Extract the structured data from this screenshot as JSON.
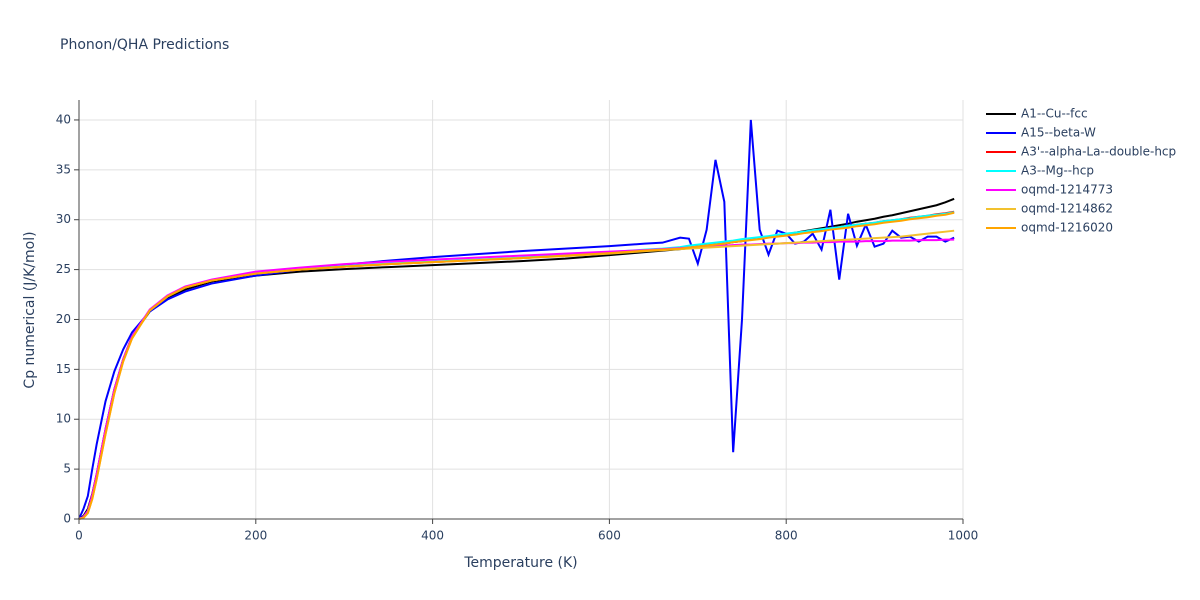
{
  "chart_data": {
    "type": "line",
    "title": "Phonon/QHA Predictions",
    "x_label": "Temperature (K)",
    "y_label": "Cp numerical (J/K/mol)",
    "xlim": [
      0,
      1000
    ],
    "xticks": [
      0,
      200,
      400,
      600,
      800,
      1000
    ],
    "ylim": [
      0,
      42
    ],
    "yticks": [
      0,
      5,
      10,
      15,
      20,
      25,
      30,
      35,
      40
    ],
    "grid": true,
    "legend": "right",
    "x": [
      0,
      5,
      10,
      15,
      20,
      30,
      40,
      50,
      60,
      80,
      100,
      120,
      150,
      200,
      250,
      300,
      350,
      400,
      450,
      500,
      550,
      600,
      640,
      660,
      680,
      690,
      700,
      710,
      720,
      730,
      740,
      750,
      760,
      770,
      780,
      790,
      800,
      810,
      820,
      830,
      840,
      850,
      860,
      870,
      880,
      890,
      900,
      910,
      920,
      930,
      940,
      950,
      960,
      970,
      980,
      990
    ],
    "series": [
      {
        "name": "A1--Cu--fcc",
        "color": "#000000",
        "values": [
          0,
          0.3,
          1,
          2.5,
          4.5,
          9,
          13,
          16,
          18.3,
          20.8,
          22.2,
          23,
          23.8,
          24.4,
          24.8,
          25.05,
          25.25,
          25.45,
          25.65,
          25.85,
          26.1,
          26.45,
          26.75,
          26.9,
          27.05,
          27.15,
          27.3,
          27.4,
          27.5,
          27.6,
          27.75,
          27.85,
          28.0,
          28.1,
          28.25,
          28.4,
          28.55,
          28.7,
          28.85,
          29.0,
          29.15,
          29.3,
          29.45,
          29.6,
          29.8,
          29.95,
          30.1,
          30.3,
          30.45,
          30.65,
          30.85,
          31.05,
          31.25,
          31.45,
          31.75,
          32.1
        ]
      },
      {
        "name": "A15--beta-W",
        "color": "#0000ff",
        "values": [
          0,
          1,
          2.3,
          5,
          7.5,
          11.8,
          14.8,
          17,
          18.7,
          20.8,
          22,
          22.8,
          23.6,
          24.4,
          25,
          25.5,
          25.9,
          26.25,
          26.55,
          26.85,
          27.1,
          27.35,
          27.6,
          27.7,
          28.2,
          28.1,
          25.6,
          29,
          36,
          31.8,
          6.7,
          20,
          40,
          29,
          26.5,
          28.9,
          28.6,
          27.6,
          27.8,
          28.6,
          27,
          31,
          24,
          30.6,
          27.4,
          29.5,
          27.3,
          27.6,
          28.9,
          28.2,
          28.3,
          27.8,
          28.3,
          28.3,
          27.8,
          28.2
        ]
      },
      {
        "name": "A3'--alpha-La--double-hcp",
        "color": "#ff0000",
        "values": [
          0,
          0.2,
          0.8,
          2.3,
          4.3,
          8.8,
          12.8,
          15.9,
          18.2,
          20.9,
          22.3,
          23.2,
          23.9,
          24.6,
          25,
          25.3,
          25.55,
          25.75,
          25.95,
          26.15,
          26.4,
          26.7,
          26.95,
          27.05,
          27.2,
          27.3,
          27.4,
          27.5,
          27.65,
          27.75,
          27.85,
          28.0,
          28.1,
          28.2,
          28.3,
          28.45,
          28.55,
          28.65,
          28.8,
          28.9,
          29.0,
          29.15,
          29.25,
          29.35,
          29.5,
          29.6,
          29.7,
          29.85,
          29.95,
          30.05,
          30.2,
          30.3,
          30.4,
          30.55,
          30.65,
          30.8
        ]
      },
      {
        "name": "A3--Mg--hcp",
        "color": "#00ffff",
        "values": [
          0,
          0.2,
          0.8,
          2.3,
          4.3,
          8.8,
          12.8,
          15.9,
          18.2,
          20.9,
          22.3,
          23.2,
          23.95,
          24.65,
          25.05,
          25.35,
          25.6,
          25.8,
          26.0,
          26.2,
          26.45,
          26.75,
          27.0,
          27.1,
          27.25,
          27.4,
          27.5,
          27.6,
          27.7,
          27.8,
          27.9,
          28.05,
          28.15,
          28.25,
          28.35,
          28.5,
          28.6,
          28.7,
          28.8,
          28.95,
          29.05,
          29.15,
          29.25,
          29.4,
          29.5,
          29.6,
          29.7,
          29.85,
          29.95,
          30.05,
          30.15,
          30.3,
          30.4,
          30.5,
          30.6,
          30.75
        ]
      },
      {
        "name": "oqmd-1214773",
        "color": "#ff00ff",
        "values": [
          0,
          0.2,
          0.8,
          2.4,
          4.5,
          9,
          13,
          16,
          18.3,
          21,
          22.4,
          23.3,
          24,
          24.8,
          25.2,
          25.55,
          25.8,
          26.0,
          26.2,
          26.4,
          26.6,
          26.8,
          26.95,
          27.05,
          27.15,
          27.2,
          27.25,
          27.3,
          27.35,
          27.4,
          27.45,
          27.5,
          27.5,
          27.55,
          27.6,
          27.6,
          27.65,
          27.65,
          27.7,
          27.7,
          27.75,
          27.75,
          27.8,
          27.8,
          27.8,
          27.85,
          27.85,
          27.85,
          27.9,
          27.9,
          27.9,
          27.95,
          27.95,
          27.95,
          28.0,
          28.0
        ]
      },
      {
        "name": "oqmd-1214862",
        "color": "#f2c12e",
        "values": [
          0,
          0.1,
          0.6,
          2,
          4,
          8.5,
          12.6,
          15.8,
          18.1,
          20.9,
          22.3,
          23.2,
          23.9,
          24.6,
          25,
          25.3,
          25.55,
          25.75,
          25.95,
          26.15,
          26.35,
          26.6,
          26.85,
          26.95,
          27.05,
          27.1,
          27.15,
          27.2,
          27.25,
          27.3,
          27.35,
          27.4,
          27.45,
          27.5,
          27.55,
          27.6,
          27.65,
          27.7,
          27.75,
          27.8,
          27.85,
          27.9,
          27.95,
          28.0,
          28.05,
          28.1,
          28.15,
          28.2,
          28.25,
          28.3,
          28.4,
          28.5,
          28.6,
          28.7,
          28.8,
          28.9
        ]
      },
      {
        "name": "oqmd-1216020",
        "color": "#ffa500",
        "values": [
          0,
          0.1,
          0.6,
          2,
          4,
          8.5,
          12.6,
          15.8,
          18.1,
          20.9,
          22.3,
          23.2,
          23.9,
          24.6,
          25,
          25.3,
          25.55,
          25.75,
          25.95,
          26.15,
          26.4,
          26.65,
          26.9,
          27.0,
          27.1,
          27.2,
          27.3,
          27.4,
          27.5,
          27.6,
          27.75,
          27.85,
          27.95,
          28.05,
          28.2,
          28.3,
          28.4,
          28.5,
          28.65,
          28.75,
          28.85,
          29.0,
          29.1,
          29.2,
          29.35,
          29.45,
          29.55,
          29.7,
          29.8,
          29.9,
          30.05,
          30.15,
          30.25,
          30.4,
          30.5,
          30.7
        ]
      }
    ]
  }
}
